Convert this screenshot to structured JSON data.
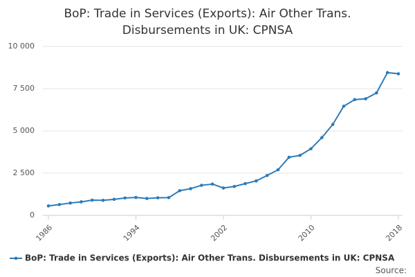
{
  "chart_data": {
    "type": "line",
    "title": "BoP: Trade in Services (Exports): Air Other Trans. Disbursements in UK: CPNSA",
    "x": [
      1986,
      1987,
      1988,
      1989,
      1990,
      1991,
      1992,
      1993,
      1994,
      1995,
      1996,
      1997,
      1998,
      1999,
      2000,
      2001,
      2002,
      2003,
      2004,
      2005,
      2006,
      2007,
      2008,
      2009,
      2010,
      2011,
      2012,
      2013,
      2014,
      2015,
      2016,
      2017,
      2018
    ],
    "series": [
      {
        "name": "BoP: Trade in Services (Exports): Air Other Trans. Disbursements in UK: CPNSA",
        "color": "#2b7bba",
        "values": [
          560,
          640,
          730,
          800,
          900,
          890,
          950,
          1030,
          1060,
          1000,
          1040,
          1050,
          1460,
          1580,
          1780,
          1850,
          1620,
          1710,
          1880,
          2040,
          2360,
          2700,
          3440,
          3550,
          3940,
          4600,
          5380,
          6460,
          6850,
          6900,
          7250,
          8450,
          8380
        ]
      }
    ],
    "xlim": [
      1986,
      2018
    ],
    "xticks": [
      1986,
      1994,
      2002,
      2010,
      2018
    ],
    "ylim": [
      0,
      10000
    ],
    "yticks": [
      0,
      {
        "value": 2500,
        "label": "2 500"
      },
      {
        "value": 5000,
        "label": "5 000"
      },
      {
        "value": 7500,
        "label": "7 500"
      },
      {
        "value": 10000,
        "label": "10 000"
      }
    ],
    "grid": true,
    "source_label": "Source:"
  }
}
